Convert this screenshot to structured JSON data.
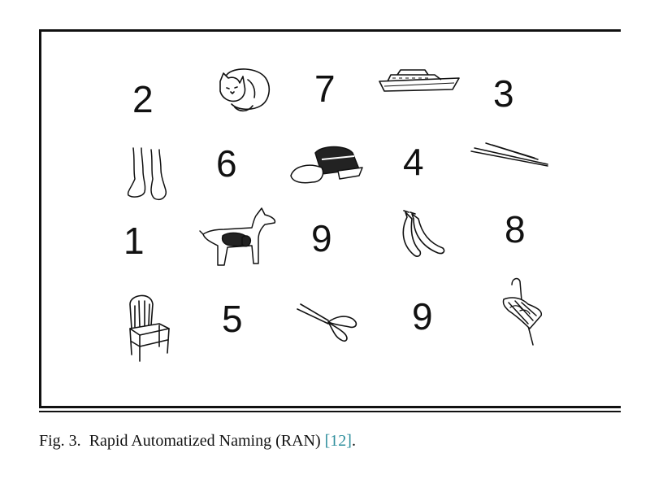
{
  "figure": {
    "items": [
      {
        "id": "r1c1",
        "text": "2"
      },
      {
        "id": "r1c2",
        "icon": "cat-icon"
      },
      {
        "id": "r1c3",
        "text": "7"
      },
      {
        "id": "r1c4",
        "icon": "ship-icon"
      },
      {
        "id": "r1c5",
        "text": "3"
      },
      {
        "id": "r2c1",
        "icon": "feet-icon"
      },
      {
        "id": "r2c2",
        "text": "6"
      },
      {
        "id": "r2c3",
        "icon": "cap-icon"
      },
      {
        "id": "r2c4",
        "text": "4"
      },
      {
        "id": "r2c5",
        "icon": "pen-icon"
      },
      {
        "id": "r3c1",
        "text": "1"
      },
      {
        "id": "r3c2",
        "icon": "dog-icon"
      },
      {
        "id": "r3c3",
        "text": "9"
      },
      {
        "id": "r3c4",
        "icon": "banana-icon"
      },
      {
        "id": "r3c5",
        "text": "8"
      },
      {
        "id": "r4c1",
        "icon": "chair-icon"
      },
      {
        "id": "r4c2",
        "text": "5"
      },
      {
        "id": "r4c3",
        "icon": "scissors-icon"
      },
      {
        "id": "r4c4",
        "text": "9"
      },
      {
        "id": "r4c5",
        "icon": "umbrella-icon"
      }
    ]
  },
  "caption": {
    "label": "Fig. 3.",
    "text": "Rapid Automatized Naming (RAN)",
    "reference": "[12]",
    "end": "."
  },
  "colors": {
    "line": "#111111",
    "reference_link": "#2f8f9d"
  }
}
